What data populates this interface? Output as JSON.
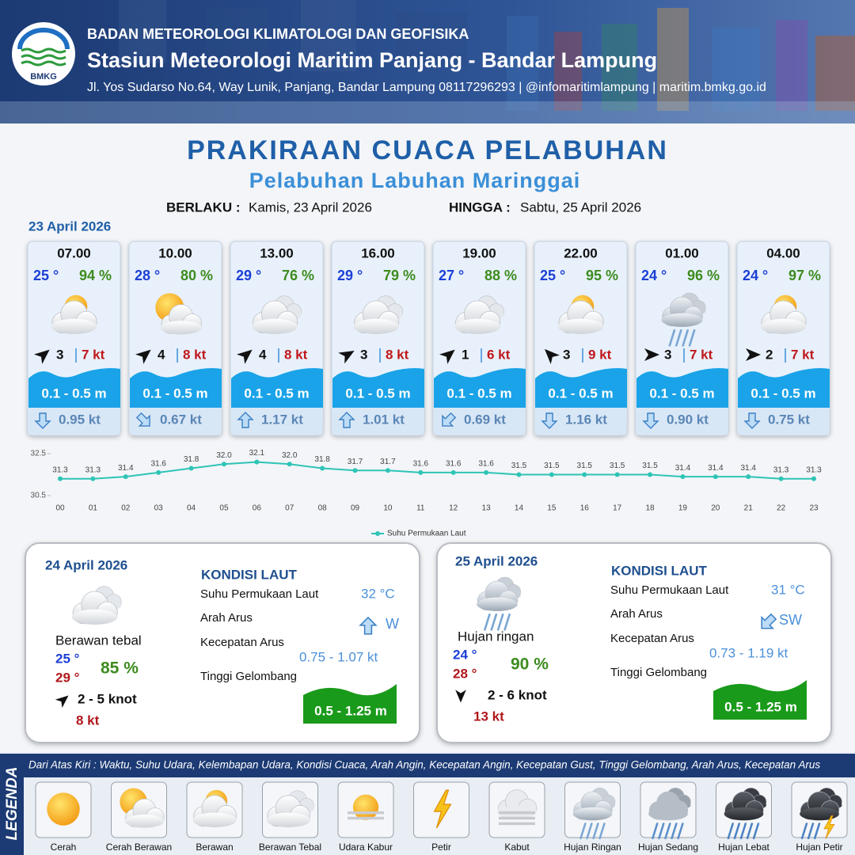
{
  "header": {
    "agency": "BADAN METEOROLOGI KLIMATOLOGI DAN GEOFISIKA",
    "station": "Stasiun Meteorologi Maritim Panjang - Bandar Lampung",
    "address": "Jl. Yos Sudarso No.64, Way Lunik, Panjang, Bandar Lampung 08117296293 | @infomaritimlampung | maritim.bmkg.go.id",
    "logo_text": "BMKG"
  },
  "title": "PRAKIRAAN CUACA PELABUHAN",
  "subtitle": "Pelabuhan Labuhan Maringgai",
  "validity": {
    "from_label": "BERLAKU :",
    "from": "Kamis, 23 April 2026",
    "to_label": "HINGGA :",
    "to": "Sabtu, 25 April 2026"
  },
  "day1_date": "23 April 2026",
  "forecasts": [
    {
      "time": "07.00",
      "temp": "25 °",
      "humidity": "94 %",
      "condition": "Berawan",
      "wind_arrow_deg": -40,
      "wind": "3",
      "gust": "7 kt",
      "wave": "0.1 - 0.5 m",
      "current_arrow_deg": 90,
      "current": "0.95 kt"
    },
    {
      "time": "10.00",
      "temp": "28 °",
      "humidity": "80 %",
      "condition": "Cerah Berawan",
      "wind_arrow_deg": -40,
      "wind": "4",
      "gust": "8 kt",
      "wave": "0.1 - 0.5 m",
      "current_arrow_deg": 45,
      "current": "0.67 kt"
    },
    {
      "time": "13.00",
      "temp": "29 °",
      "humidity": "76 %",
      "condition": "Berawan Tebal",
      "wind_arrow_deg": -40,
      "wind": "4",
      "gust": "8 kt",
      "wave": "0.1 - 0.5 m",
      "current_arrow_deg": -90,
      "current": "1.17 kt"
    },
    {
      "time": "16.00",
      "temp": "29 °",
      "humidity": "79 %",
      "condition": "Berawan Tebal",
      "wind_arrow_deg": -30,
      "wind": "3",
      "gust": "8 kt",
      "wave": "0.1 - 0.5 m",
      "current_arrow_deg": -90,
      "current": "1.01 kt"
    },
    {
      "time": "19.00",
      "temp": "27 °",
      "humidity": "88 %",
      "condition": "Berawan Tebal",
      "wind_arrow_deg": -40,
      "wind": "1",
      "gust": "6 kt",
      "wave": "0.1 - 0.5 m",
      "current_arrow_deg": 135,
      "current": "0.69 kt"
    },
    {
      "time": "22.00",
      "temp": "25 °",
      "humidity": "95 %",
      "condition": "Berawan",
      "wind_arrow_deg": -135,
      "wind": "3",
      "gust": "9 kt",
      "wave": "0.1 - 0.5 m",
      "current_arrow_deg": 90,
      "current": "1.16 kt"
    },
    {
      "time": "01.00",
      "temp": "24 °",
      "humidity": "96 %",
      "condition": "Hujan Ringan",
      "wind_arrow_deg": 0,
      "wind": "3",
      "gust": "7 kt",
      "wave": "0.1 - 0.5 m",
      "current_arrow_deg": 90,
      "current": "0.90 kt"
    },
    {
      "time": "04.00",
      "temp": "24 °",
      "humidity": "97 %",
      "condition": "Berawan",
      "wind_arrow_deg": 0,
      "wind": "2",
      "gust": "7 kt",
      "wave": "0.1 - 0.5 m",
      "current_arrow_deg": 90,
      "current": "0.75 kt"
    }
  ],
  "chart_data": {
    "type": "line",
    "categories": [
      "00",
      "01",
      "02",
      "03",
      "04",
      "05",
      "06",
      "07",
      "08",
      "09",
      "10",
      "11",
      "12",
      "13",
      "14",
      "15",
      "16",
      "17",
      "18",
      "19",
      "20",
      "21",
      "22",
      "23"
    ],
    "series": [
      {
        "name": "Suhu Permukaan Laut",
        "color": "#2ec4b6",
        "values": [
          31.3,
          31.3,
          31.4,
          31.6,
          31.8,
          32.0,
          32.1,
          32.0,
          31.8,
          31.7,
          31.7,
          31.6,
          31.6,
          31.6,
          31.5,
          31.5,
          31.5,
          31.5,
          31.5,
          31.4,
          31.4,
          31.4,
          31.3,
          31.3
        ],
        "value_labels": [
          "31.3",
          "31.3",
          "31.4",
          "31.6",
          "31.8",
          "32.0",
          "32.1",
          "32.0",
          "31.8",
          "31.7",
          "31.7",
          "31.6",
          "31.6",
          "31.6",
          "31.5",
          "31.5",
          "31.5",
          "31.5",
          "31.5",
          "31.4",
          "31.4",
          "31.4",
          "31.3",
          "31.3"
        ]
      }
    ],
    "ylim": [
      30.5,
      32.5
    ],
    "yticks": [
      30.5,
      32.5
    ],
    "legend": "bottom"
  },
  "days": [
    {
      "date": "24 April 2026",
      "condition": "Berawan tebal",
      "temp_min": "25 °",
      "temp_max": "29 °",
      "humidity": "85 %",
      "wind_arrow_deg": -40,
      "wind": "2  - 5 knot",
      "gust": "8 kt",
      "sea_title": "KONDISI LAUT",
      "sst_label": "Suhu Permukaan Laut",
      "sst": "32 °C",
      "dir_label": "Arah Arus",
      "current_arrow_deg": -90,
      "dir": "W",
      "speed_label": "Kecepatan Arus",
      "speed": "0.75 - 1.07 kt",
      "wave_label": "Tinggi Gelombang",
      "wave": "0.5 - 1.25 m"
    },
    {
      "date": "25 April 2026",
      "condition": "Hujan ringan",
      "temp_min": "24 °",
      "temp_max": "28 °",
      "humidity": "90 %",
      "wind_arrow_deg": 90,
      "wind": "2  - 6 knot",
      "gust": "13 kt",
      "sea_title": "KONDISI LAUT",
      "sst_label": "Suhu Permukaan Laut",
      "sst": "31 °C",
      "dir_label": "Arah Arus",
      "current_arrow_deg": 135,
      "dir": "SW",
      "speed_label": "Kecepatan Arus",
      "speed": "0.73 -  1.19 kt",
      "wave_label": "Tinggi Gelombang",
      "wave": "0.5 - 1.25 m"
    }
  ],
  "legend": {
    "title": "LEGENDA",
    "note": "Dari Atas Kiri : Waktu, Suhu Udara, Kelembapan Udara, Kondisi Cuaca, Arah Angin, Kecepatan Angin, Kecepatan Gust, Tinggi Gelombang, Arah Arus, Kecepatan Arus",
    "items": [
      "Cerah",
      "Cerah Berawan",
      "Berawan",
      "Berawan Tebal",
      "Udara Kabur",
      "Petir",
      "Kabut",
      "Hujan Ringan",
      "Hujan Sedang",
      "Hujan Lebat",
      "Hujan Petir"
    ]
  }
}
